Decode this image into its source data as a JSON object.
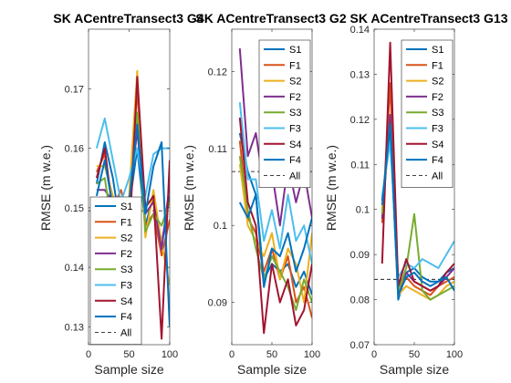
{
  "chart_data": [
    {
      "type": "line",
      "title": "SK ACentreTransect3 G4",
      "xlabel": "Sample size",
      "ylabel": "RMSE (m w.e.)",
      "xlim": [
        0,
        100
      ],
      "ylim": [
        0.127,
        0.18
      ],
      "xticks": [
        0,
        50,
        100
      ],
      "yticks": [
        0.13,
        0.14,
        0.15,
        0.16,
        0.17
      ],
      "ytick_labels": [
        "0.13",
        "0.14",
        "0.15",
        "0.16",
        "0.17"
      ],
      "legend_position": "bottom-right",
      "x": [
        10,
        20,
        30,
        40,
        50,
        60,
        70,
        80,
        90,
        100
      ],
      "all_value": 0.1495,
      "series": [
        {
          "name": "S1",
          "color": "#0072BD",
          "values": [
            0.154,
            0.161,
            0.155,
            0.146,
            0.15,
            0.16,
            0.147,
            0.152,
            0.144,
            0.152
          ]
        },
        {
          "name": "F1",
          "color": "#D95319",
          "values": [
            0.156,
            0.159,
            0.15,
            0.153,
            0.148,
            0.17,
            0.147,
            0.149,
            0.142,
            0.148
          ]
        },
        {
          "name": "S2",
          "color": "#EDB120",
          "values": [
            0.157,
            0.157,
            0.152,
            0.148,
            0.152,
            0.173,
            0.145,
            0.153,
            0.144,
            0.137
          ]
        },
        {
          "name": "F2",
          "color": "#7E2F8E",
          "values": [
            0.153,
            0.153,
            0.151,
            0.143,
            0.151,
            0.163,
            0.149,
            0.151,
            0.143,
            0.154
          ]
        },
        {
          "name": "S3",
          "color": "#77AC30",
          "values": [
            0.154,
            0.155,
            0.146,
            0.15,
            0.149,
            0.166,
            0.146,
            0.149,
            0.147,
            0.151
          ]
        },
        {
          "name": "F3",
          "color": "#4DBEEE",
          "values": [
            0.16,
            0.165,
            0.158,
            0.151,
            0.155,
            0.16,
            0.152,
            0.159,
            0.16,
            0.16
          ]
        },
        {
          "name": "S4",
          "color": "#A2142F",
          "values": [
            0.155,
            0.16,
            0.149,
            0.147,
            0.144,
            0.172,
            0.15,
            0.152,
            0.128,
            0.158
          ]
        },
        {
          "name": "F4",
          "color": "#0072BD",
          "values": [
            0.152,
            0.158,
            0.15,
            0.145,
            0.151,
            0.164,
            0.149,
            0.157,
            0.161,
            0.13
          ]
        }
      ]
    },
    {
      "type": "line",
      "title": "SK ACentreTransect3 G2",
      "xlabel": "Sample size",
      "ylabel": "RMSE (m w.e.)",
      "xlim": [
        0,
        100
      ],
      "ylim": [
        0.0845,
        0.1255
      ],
      "xticks": [
        0,
        50,
        100
      ],
      "yticks": [
        0.09,
        0.1,
        0.11,
        0.12
      ],
      "ytick_labels": [
        "0.09",
        "0.1",
        "0.11",
        "0.12"
      ],
      "legend_position": "top-right",
      "x": [
        10,
        20,
        30,
        40,
        50,
        60,
        70,
        80,
        90,
        100
      ],
      "all_value": 0.107,
      "series": [
        {
          "name": "S1",
          "color": "#0072BD",
          "values": [
            0.112,
            0.107,
            0.104,
            0.093,
            0.095,
            0.094,
            0.095,
            0.092,
            0.094,
            0.091
          ]
        },
        {
          "name": "F1",
          "color": "#D95319",
          "values": [
            0.111,
            0.101,
            0.099,
            0.094,
            0.097,
            0.093,
            0.096,
            0.09,
            0.092,
            0.088
          ]
        },
        {
          "name": "S2",
          "color": "#EDB120",
          "values": [
            0.108,
            0.1,
            0.098,
            0.096,
            0.099,
            0.093,
            0.097,
            0.095,
            0.09,
            0.099
          ]
        },
        {
          "name": "F2",
          "color": "#7E2F8E",
          "values": [
            0.123,
            0.109,
            0.112,
            0.105,
            0.107,
            0.1,
            0.108,
            0.103,
            0.107,
            0.101
          ]
        },
        {
          "name": "S3",
          "color": "#77AC30",
          "values": [
            0.109,
            0.102,
            0.097,
            0.093,
            0.096,
            0.094,
            0.092,
            0.089,
            0.093,
            0.09
          ]
        },
        {
          "name": "F3",
          "color": "#4DBEEE",
          "values": [
            0.116,
            0.106,
            0.106,
            0.098,
            0.102,
            0.097,
            0.104,
            0.098,
            0.1,
            0.095
          ]
        },
        {
          "name": "S4",
          "color": "#A2142F",
          "values": [
            0.114,
            0.103,
            0.1,
            0.086,
            0.095,
            0.09,
            0.093,
            0.087,
            0.089,
            0.095
          ]
        },
        {
          "name": "F4",
          "color": "#0072BD",
          "values": [
            0.103,
            0.101,
            0.104,
            0.092,
            0.097,
            0.096,
            0.099,
            0.094,
            0.097,
            0.101
          ]
        }
      ]
    },
    {
      "type": "line",
      "title": "SK ACentreTransect3 G13",
      "xlabel": "Sample size",
      "ylabel": "RMSE (m w.e.)",
      "xlim": [
        0,
        100
      ],
      "ylim": [
        0.07,
        0.14
      ],
      "xticks": [
        0,
        50,
        100
      ],
      "yticks": [
        0.07,
        0.08,
        0.09,
        0.1,
        0.11,
        0.12,
        0.13,
        0.14
      ],
      "ytick_labels": [
        "0.07",
        "0.08",
        "0.09",
        "0.1",
        "0.11",
        "0.12",
        "0.13",
        "0.14"
      ],
      "legend_position": "top-right",
      "x": [
        10,
        20,
        30,
        40,
        50,
        60,
        70,
        80,
        90,
        100
      ],
      "all_value": 0.0845,
      "series": [
        {
          "name": "S1",
          "color": "#0072BD",
          "values": [
            0.102,
            0.118,
            0.08,
            0.086,
            0.087,
            0.085,
            0.084,
            0.084,
            0.086,
            0.087
          ]
        },
        {
          "name": "F1",
          "color": "#D95319",
          "values": [
            0.097,
            0.128,
            0.082,
            0.085,
            0.083,
            0.082,
            0.081,
            0.083,
            0.084,
            0.085
          ]
        },
        {
          "name": "S2",
          "color": "#EDB120",
          "values": [
            0.1,
            0.12,
            0.081,
            0.083,
            0.082,
            0.081,
            0.08,
            0.081,
            0.083,
            0.084
          ]
        },
        {
          "name": "F2",
          "color": "#7E2F8E",
          "values": [
            0.098,
            0.121,
            0.083,
            0.086,
            0.084,
            0.083,
            0.082,
            0.083,
            0.085,
            0.087
          ]
        },
        {
          "name": "S3",
          "color": "#77AC30",
          "values": [
            0.099,
            0.119,
            0.082,
            0.087,
            0.099,
            0.082,
            0.08,
            0.081,
            0.082,
            0.083
          ]
        },
        {
          "name": "F3",
          "color": "#4DBEEE",
          "values": [
            0.103,
            0.115,
            0.085,
            0.088,
            0.087,
            0.089,
            0.088,
            0.087,
            0.09,
            0.093
          ]
        },
        {
          "name": "S4",
          "color": "#A2142F",
          "values": [
            0.088,
            0.137,
            0.083,
            0.089,
            0.084,
            0.083,
            0.082,
            0.083,
            0.086,
            0.088
          ]
        },
        {
          "name": "F4",
          "color": "#0072BD",
          "values": [
            0.101,
            0.119,
            0.081,
            0.085,
            0.086,
            0.084,
            0.083,
            0.084,
            0.085,
            0.082
          ]
        }
      ]
    }
  ]
}
